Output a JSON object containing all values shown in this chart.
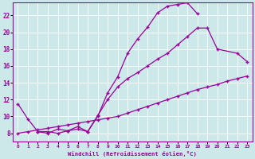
{
  "bg_color": "#cce8e8",
  "line_color": "#990099",
  "xlabel": "Windchill (Refroidissement éolien,°C)",
  "xlim": [
    -0.5,
    23.5
  ],
  "ylim": [
    7.0,
    23.5
  ],
  "xticks": [
    0,
    1,
    2,
    3,
    4,
    5,
    6,
    7,
    8,
    9,
    10,
    11,
    12,
    13,
    14,
    15,
    16,
    17,
    18,
    19,
    20,
    21,
    22,
    23
  ],
  "yticks": [
    8,
    10,
    12,
    14,
    16,
    18,
    20,
    22
  ],
  "line1_x": [
    0,
    1,
    2,
    3,
    4,
    5,
    6,
    7,
    8,
    9,
    10,
    11,
    12,
    13,
    14,
    15,
    16,
    17,
    18
  ],
  "line1_y": [
    11.5,
    9.7,
    8.2,
    8.2,
    8.0,
    8.3,
    8.5,
    8.2,
    10.0,
    12.8,
    14.7,
    17.5,
    19.2,
    20.6,
    22.3,
    23.1,
    23.3,
    23.5,
    22.2
  ],
  "line2_x": [
    2,
    3,
    4,
    5,
    6,
    7,
    8,
    9,
    10,
    11,
    12,
    13,
    14,
    15,
    16,
    17,
    18,
    19,
    20,
    22,
    23
  ],
  "line2_y": [
    8.2,
    8.0,
    8.5,
    8.3,
    8.8,
    8.2,
    10.1,
    12.0,
    13.5,
    14.5,
    15.2,
    16.0,
    16.8,
    17.5,
    18.5,
    19.5,
    20.5,
    20.5,
    18.0,
    17.5,
    16.5
  ],
  "line3_x": [
    0,
    1,
    2,
    3,
    4,
    5,
    6,
    7,
    8,
    9,
    10,
    11,
    12,
    13,
    14,
    15,
    16,
    17,
    18,
    19,
    20,
    21,
    22,
    23
  ],
  "line3_y": [
    8.0,
    8.2,
    8.4,
    8.6,
    8.8,
    9.0,
    9.2,
    9.4,
    9.6,
    9.8,
    10.0,
    10.4,
    10.8,
    11.2,
    11.6,
    12.0,
    12.4,
    12.8,
    13.2,
    13.5,
    13.8,
    14.2,
    14.5,
    14.8
  ]
}
